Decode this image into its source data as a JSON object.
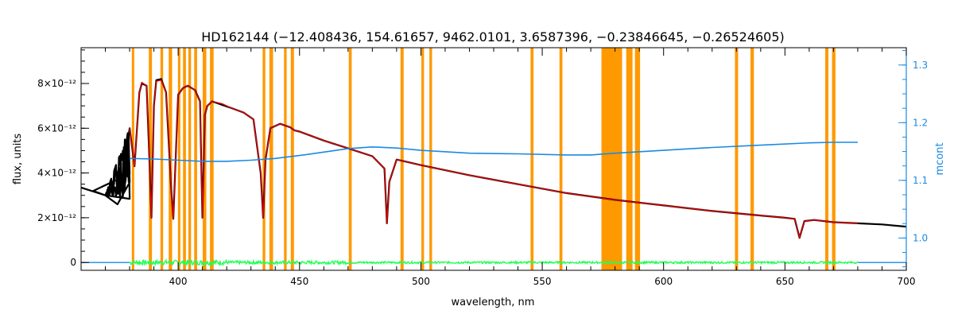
{
  "chart_data": {
    "type": "line",
    "title": "HD162144    (−12.408436, 154.61657, 9462.0101, 3.6587396, −0.23846645, −0.26524605)",
    "xlabel": "wavelength, nm",
    "ylabel": "flux, units",
    "y2label": "mcont",
    "xlim": [
      360,
      700
    ],
    "ylim": [
      -3.5e-13,
      9.6e-12
    ],
    "y2lim": [
      0.944,
      1.33
    ],
    "x_ticks": [
      400,
      450,
      500,
      550,
      600,
      650,
      700
    ],
    "x_tick_labels": [
      "400",
      "450",
      "500",
      "550",
      "600",
      "650",
      "700"
    ],
    "y_ticks": [
      0,
      2e-12,
      4e-12,
      6e-12,
      8e-12
    ],
    "y_tick_labels": [
      "0",
      "2×10⁻¹²",
      "4×10⁻¹²",
      "6×10⁻¹²",
      "8×10⁻¹²"
    ],
    "y2_ticks": [
      1.0,
      1.1,
      1.2,
      1.3
    ],
    "y2_tick_labels": [
      "1.0",
      "1.1",
      "1.2",
      "1.3"
    ],
    "colors": {
      "observed": "#000000",
      "model": "#e00000",
      "mcont": "#1a8ae0",
      "residual": "#22ff55",
      "mask": "#ff9900",
      "axis": "#000000",
      "axis2": "#1a8ae0"
    },
    "masked_bands": [
      [
        380.9,
        381.9
      ],
      [
        387.9,
        389.2
      ],
      [
        392.7,
        393.8
      ],
      [
        396.1,
        397.5
      ],
      [
        399.9,
        400.9
      ],
      [
        402.0,
        403.2
      ],
      [
        404.2,
        405.3
      ],
      [
        406.6,
        407.8
      ],
      [
        410.1,
        411.6
      ],
      [
        413.1,
        414.6
      ],
      [
        434.8,
        435.9
      ],
      [
        437.6,
        439.1
      ],
      [
        443.6,
        444.7
      ],
      [
        446.4,
        447.7
      ],
      [
        470.3,
        471.5
      ],
      [
        491.6,
        492.9
      ],
      [
        500.2,
        501.3
      ],
      [
        503.5,
        504.6
      ],
      [
        545.2,
        546.4
      ],
      [
        557.1,
        558.3
      ],
      [
        574.4,
        582.9
      ],
      [
        584.6,
        587.2
      ],
      [
        588.2,
        590.3
      ],
      [
        629.4,
        630.7
      ],
      [
        635.8,
        637.2
      ],
      [
        666.6,
        667.9
      ],
      [
        669.4,
        670.8
      ]
    ],
    "series": [
      {
        "name": "observed",
        "x": [
          360,
          365,
          370,
          375,
          378,
          380,
          382,
          384,
          385,
          387,
          388,
          389,
          390,
          391,
          393,
          395,
          397,
          398,
          400,
          402,
          404,
          407,
          409,
          410,
          411,
          412,
          414,
          418,
          422,
          427,
          431,
          434,
          435,
          436,
          438,
          442,
          446,
          448,
          450,
          460,
          470,
          480,
          485,
          486,
          487,
          490,
          500,
          520,
          540,
          560,
          580,
          600,
          620,
          640,
          650,
          654,
          656,
          658,
          662,
          670,
          680,
          690,
          700
        ],
        "y": [
          3.35e-12,
          3.2e-12,
          3e-12,
          2.6e-12,
          4.5e-12,
          6e-12,
          4.3e-12,
          7.6e-12,
          8e-12,
          7.9e-12,
          5e-12,
          2e-12,
          7e-12,
          8.15e-12,
          8.2e-12,
          7.6e-12,
          3.5e-12,
          1.95e-12,
          7.5e-12,
          7.8e-12,
          7.9e-12,
          7.7e-12,
          7.2e-12,
          2e-12,
          6.6e-12,
          7e-12,
          7.2e-12,
          7.05e-12,
          6.9e-12,
          6.7e-12,
          6.4e-12,
          4e-12,
          2e-12,
          4.6e-12,
          6e-12,
          6.2e-12,
          6.05e-12,
          5.9e-12,
          5.85e-12,
          5.45e-12,
          5.1e-12,
          4.75e-12,
          4.2e-12,
          1.75e-12,
          3.6e-12,
          4.6e-12,
          4.35e-12,
          3.9e-12,
          3.5e-12,
          3.1e-12,
          2.8e-12,
          2.55e-12,
          2.3e-12,
          2.1e-12,
          2e-12,
          1.95e-12,
          1.1e-12,
          1.85e-12,
          1.9e-12,
          1.8e-12,
          1.75e-12,
          1.7e-12,
          1.6e-12
        ]
      },
      {
        "name": "model",
        "x": [
          380,
          382,
          384,
          385,
          387,
          388,
          389,
          390,
          391,
          393,
          395,
          397,
          398,
          400,
          402,
          404,
          407,
          409,
          410,
          411,
          412,
          414,
          418,
          422,
          427,
          431,
          434,
          435,
          436,
          438,
          442,
          446,
          448,
          450,
          460,
          470,
          480,
          485,
          486,
          487,
          490,
          500,
          520,
          540,
          560,
          580,
          600,
          620,
          640,
          650,
          654,
          656,
          658,
          662,
          670,
          680
        ],
        "y": [
          6e-12,
          4.3e-12,
          7.6e-12,
          8.05e-12,
          7.9e-12,
          5e-12,
          2e-12,
          7e-12,
          8.1e-12,
          8.15e-12,
          7.6e-12,
          3.5e-12,
          1.95e-12,
          7.5e-12,
          7.8e-12,
          7.9e-12,
          7.7e-12,
          7.2e-12,
          2e-12,
          6.6e-12,
          7e-12,
          7.2e-12,
          7.1e-12,
          6.9e-12,
          6.7e-12,
          6.4e-12,
          4e-12,
          2e-12,
          4.6e-12,
          6e-12,
          6.2e-12,
          6.05e-12,
          5.9e-12,
          5.85e-12,
          5.45e-12,
          5.1e-12,
          4.75e-12,
          4.2e-12,
          1.75e-12,
          3.6e-12,
          4.6e-12,
          4.35e-12,
          3.9e-12,
          3.5e-12,
          3.1e-12,
          2.8e-12,
          2.55e-12,
          2.3e-12,
          2.1e-12,
          2e-12,
          1.95e-12,
          1.1e-12,
          1.85e-12,
          1.9e-12,
          1.8e-12,
          1.75e-12
        ]
      },
      {
        "name": "mcont",
        "axis": "y2",
        "x": [
          380,
          390,
          400,
          410,
          420,
          430,
          440,
          450,
          460,
          470,
          480,
          490,
          500,
          520,
          540,
          560,
          570,
          580,
          600,
          620,
          640,
          660,
          670,
          680
        ],
        "y": [
          1.138,
          1.137,
          1.135,
          1.133,
          1.133,
          1.135,
          1.138,
          1.143,
          1.149,
          1.155,
          1.158,
          1.156,
          1.152,
          1.147,
          1.146,
          1.144,
          1.144,
          1.147,
          1.152,
          1.157,
          1.161,
          1.165,
          1.166,
          1.166
        ]
      },
      {
        "name": "residual",
        "x": [
          360,
          380,
          700
        ],
        "y": [
          0,
          0,
          0
        ]
      }
    ]
  }
}
